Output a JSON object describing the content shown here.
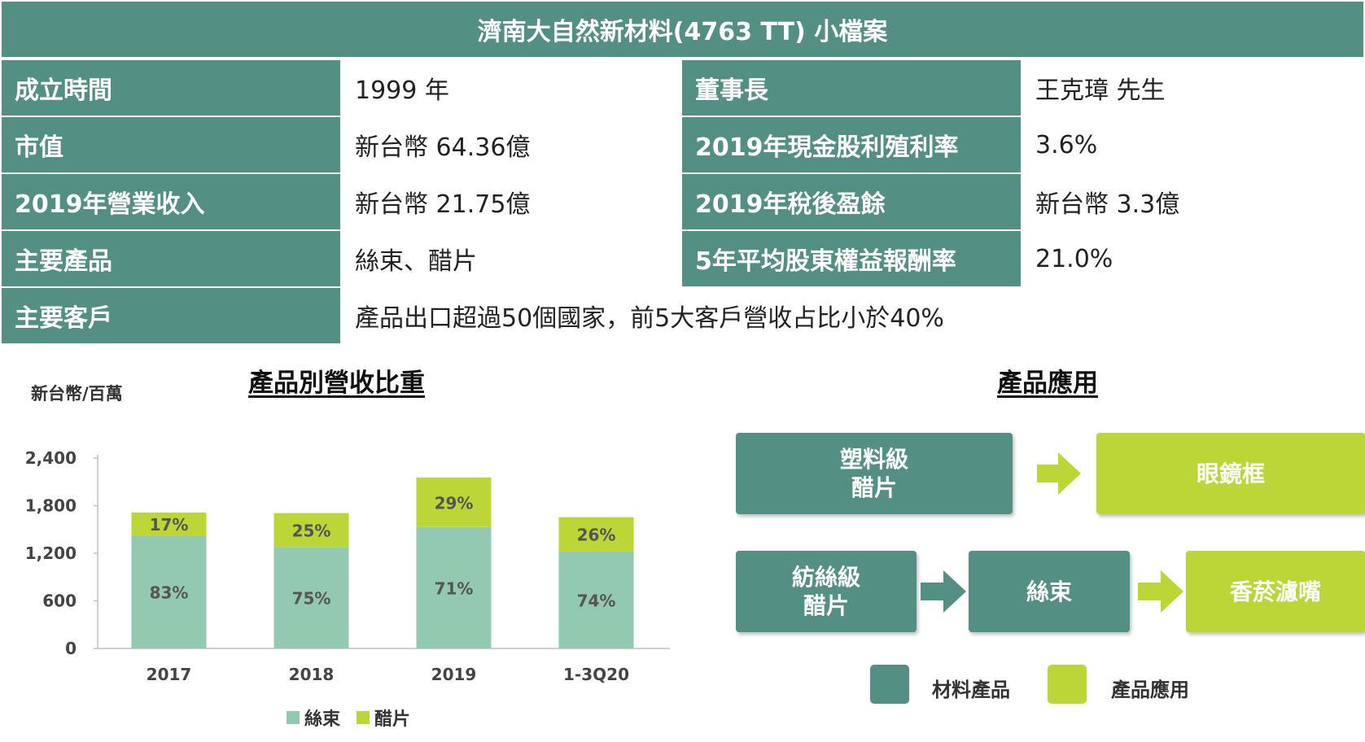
{
  "title": "濟南大自然新材料(4763 TT) 小檔案",
  "info_rows": [
    {
      "label1": "成立時間",
      "value1": "1999 年",
      "label2": "董事長",
      "value2": "王克璋 先生"
    },
    {
      "label1": "市值",
      "value1": "新台幣 64.36億",
      "label2": "2019年現金股利殖利率",
      "value2": "3.6%"
    },
    {
      "label1": "2019年營業收入",
      "value1": "新台幣 21.75億",
      "label2": "2019年稅後盈餘",
      "value2": "新台幣 3.3億"
    },
    {
      "label1": "主要產品",
      "value1": "絲束、醋片",
      "label2": "5年平均股東權益報酬率",
      "value2": "21.0%"
    },
    {
      "label1": "主要客戶",
      "value1": "產品出口超過50個國家，前5大客戶營收占比小於40%"
    }
  ],
  "left_section": {
    "title": "產品別營收比重",
    "unit": "新台幣/百萬"
  },
  "chart_data": {
    "type": "bar",
    "stacked": true,
    "categories": [
      "2017",
      "2018",
      "2019",
      "1-3Q20"
    ],
    "series": [
      {
        "name": "絲束",
        "color": "#93c9b0",
        "values": [
          1422,
          1280,
          1530,
          1225
        ],
        "labels": [
          "83%",
          "75%",
          "71%",
          "74%"
        ]
      },
      {
        "name": "醋片",
        "color": "#bcd637",
        "values": [
          291,
          426,
          625,
          430
        ],
        "labels": [
          "17%",
          "25%",
          "29%",
          "26%"
        ]
      }
    ],
    "yticks": [
      "0",
      "600",
      "1,200",
      "1,800",
      "2,400"
    ],
    "ylim": [
      0,
      2400
    ],
    "grid": false,
    "legend_position": "bottom"
  },
  "right_section": {
    "title": "產品應用",
    "boxes": {
      "plastic": "塑料級\n醋片",
      "frames": "眼鏡框",
      "textile": "紡絲級\n醋片",
      "tow": "絲束",
      "filter": "香菸濾嘴"
    },
    "key": {
      "material": "材料產品",
      "application": "產品應用"
    },
    "colors": {
      "material": "#548f83",
      "application": "#bcd637"
    }
  }
}
